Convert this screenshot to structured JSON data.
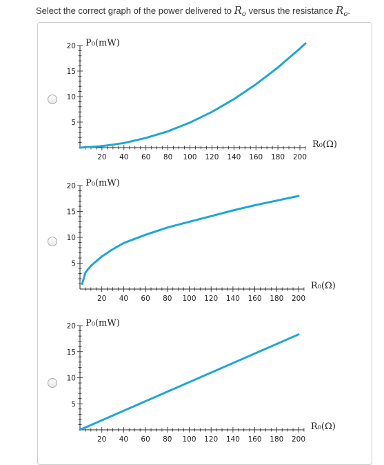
{
  "question": {
    "prefix": "Select the correct graph of the power delivered to",
    "var1": "R",
    "var1_sub": "o",
    "middle": "versus the resistance",
    "var2": "R",
    "var2_sub": "o",
    "suffix": "."
  },
  "options": [
    {
      "label": "option-1"
    },
    {
      "label": "option-2"
    },
    {
      "label": "option-3"
    }
  ],
  "colors": {
    "curve": "#1ea6d9",
    "axis": "#222222",
    "border": "#cccccc"
  },
  "chart_data": [
    {
      "type": "line",
      "ylabel": "P₀(mW)",
      "xlabel": "R₀(Ω)",
      "x_ticks": [
        20,
        40,
        60,
        80,
        100,
        120,
        140,
        160,
        180,
        200
      ],
      "y_ticks": [
        5,
        10,
        15,
        20
      ],
      "xlim": [
        0,
        205
      ],
      "ylim": [
        0,
        20
      ],
      "series": [
        {
          "x": [
            0,
            20,
            40,
            60,
            80,
            100,
            120,
            140,
            160,
            180,
            200,
            205
          ],
          "y": [
            0,
            0.3,
            0.9,
            1.9,
            3.2,
            4.9,
            7.0,
            9.5,
            12.4,
            15.7,
            19.4,
            20.4
          ]
        }
      ]
    },
    {
      "type": "line",
      "ylabel": "P₀(mW)",
      "xlabel": "R₀(Ω)",
      "x_ticks": [
        20,
        40,
        60,
        80,
        100,
        120,
        140,
        160,
        180,
        200
      ],
      "y_ticks": [
        5,
        10,
        15,
        20
      ],
      "xlim": [
        0,
        205
      ],
      "ylim": [
        0,
        20
      ],
      "series": [
        {
          "x": [
            2,
            5,
            10,
            20,
            30,
            40,
            60,
            80,
            100,
            120,
            140,
            160,
            180,
            200
          ],
          "y": [
            1.0,
            3.2,
            4.5,
            6.3,
            7.7,
            8.9,
            10.5,
            11.9,
            13.0,
            14.1,
            15.2,
            16.2,
            17.1,
            18.0
          ]
        }
      ]
    },
    {
      "type": "line",
      "ylabel": "P₀(mW)",
      "xlabel": "R₀(Ω)",
      "x_ticks": [
        20,
        40,
        60,
        80,
        100,
        120,
        140,
        160,
        180,
        200
      ],
      "y_ticks": [
        5,
        10,
        15,
        20
      ],
      "xlim": [
        0,
        205
      ],
      "ylim": [
        0,
        20
      ],
      "series": [
        {
          "x": [
            0,
            200
          ],
          "y": [
            0,
            18.3
          ]
        }
      ]
    }
  ]
}
